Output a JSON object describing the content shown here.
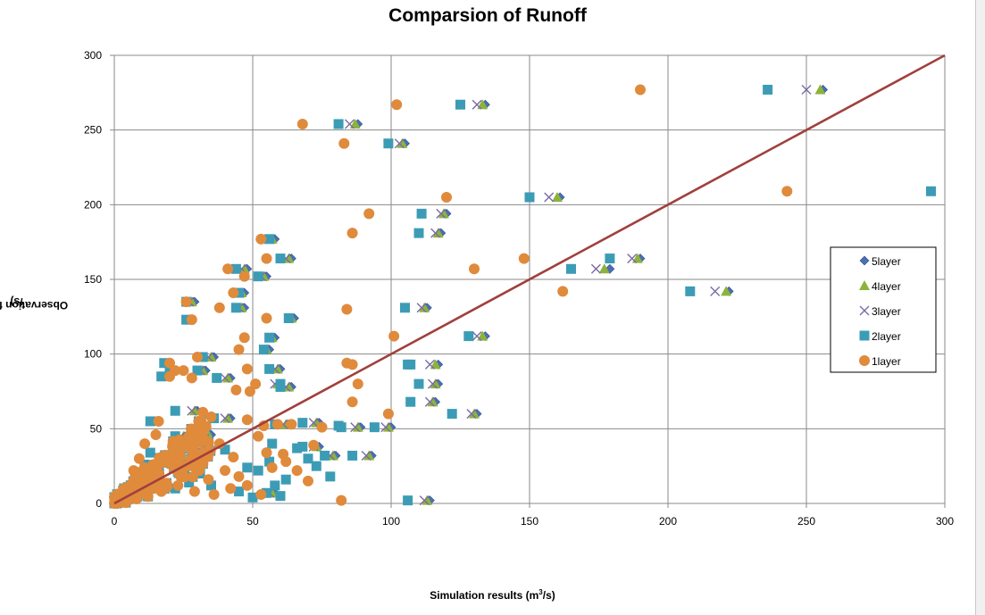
{
  "chart_data": {
    "type": "scatter",
    "title": "Comparsion of Runoff",
    "xlabel": "Simulation results (m",
    "xlabel_sup": "3",
    "xlabel_end": "/s)",
    "ylabel": "Observation flow (m",
    "ylabel_sup": "3",
    "ylabel_end": "/s)",
    "xlim": [
      0,
      300
    ],
    "ylim": [
      0,
      300
    ],
    "xticks": [
      0,
      50,
      100,
      150,
      200,
      250,
      300
    ],
    "yticks": [
      0,
      50,
      100,
      150,
      200,
      250,
      300
    ],
    "grid": true,
    "legend_position": "right",
    "reference_line": {
      "x": [
        0,
        300
      ],
      "y": [
        0,
        300
      ],
      "color": "#a0403d"
    },
    "series": [
      {
        "name": "5layer",
        "marker": "diamond",
        "color": "#4a6fb5",
        "points": [
          [
            256,
            277
          ],
          [
            134,
            267
          ],
          [
            88,
            254
          ],
          [
            105,
            241
          ],
          [
            161,
            205
          ],
          [
            120,
            194
          ],
          [
            118,
            181
          ],
          [
            64,
            164
          ],
          [
            190,
            164
          ],
          [
            58,
            177
          ],
          [
            55,
            152
          ],
          [
            48,
            157
          ],
          [
            29,
            135
          ],
          [
            28,
            123
          ],
          [
            47,
            141
          ],
          [
            47,
            131
          ],
          [
            65,
            124
          ],
          [
            58,
            111
          ],
          [
            134,
            112
          ],
          [
            113,
            131
          ],
          [
            222,
            142
          ],
          [
            179,
            157
          ],
          [
            36,
            98
          ],
          [
            56,
            103
          ],
          [
            33,
            89
          ],
          [
            117,
            93
          ],
          [
            117,
            80
          ],
          [
            60,
            90
          ],
          [
            60,
            80
          ],
          [
            64,
            78
          ],
          [
            42,
            84
          ],
          [
            116,
            68
          ],
          [
            131,
            60
          ],
          [
            100,
            51
          ],
          [
            89,
            51
          ],
          [
            74,
            54
          ],
          [
            63,
            53
          ],
          [
            74,
            38
          ],
          [
            80,
            32
          ],
          [
            93,
            32
          ],
          [
            114,
            2
          ],
          [
            58,
            7
          ],
          [
            30,
            62
          ],
          [
            42,
            57
          ],
          [
            20,
            94
          ],
          [
            22,
            89
          ],
          [
            20,
            85
          ],
          [
            35,
            46
          ],
          [
            16,
            55
          ],
          [
            26,
            45
          ]
        ]
      },
      {
        "name": "4layer",
        "marker": "triangle",
        "color": "#8db33a",
        "points": [
          [
            255,
            277
          ],
          [
            133,
            267
          ],
          [
            87,
            254
          ],
          [
            104,
            241
          ],
          [
            160,
            205
          ],
          [
            119,
            194
          ],
          [
            117,
            181
          ],
          [
            63,
            164
          ],
          [
            189,
            164
          ],
          [
            57,
            177
          ],
          [
            54,
            152
          ],
          [
            47,
            157
          ],
          [
            28,
            135
          ],
          [
            27,
            123
          ],
          [
            46,
            141
          ],
          [
            46,
            131
          ],
          [
            64,
            124
          ],
          [
            57,
            111
          ],
          [
            133,
            112
          ],
          [
            112,
            131
          ],
          [
            221,
            142
          ],
          [
            177,
            157
          ],
          [
            35,
            98
          ],
          [
            55,
            103
          ],
          [
            32,
            89
          ],
          [
            116,
            93
          ],
          [
            116,
            80
          ],
          [
            59,
            90
          ],
          [
            59,
            80
          ],
          [
            63,
            78
          ],
          [
            41,
            84
          ],
          [
            115,
            68
          ],
          [
            130,
            60
          ],
          [
            99,
            51
          ],
          [
            88,
            51
          ],
          [
            73,
            54
          ],
          [
            62,
            53
          ],
          [
            73,
            38
          ],
          [
            79,
            32
          ],
          [
            92,
            32
          ],
          [
            113,
            2
          ],
          [
            57,
            7
          ],
          [
            29,
            62
          ],
          [
            41,
            57
          ],
          [
            19,
            94
          ],
          [
            21,
            89
          ],
          [
            19,
            85
          ],
          [
            34,
            46
          ],
          [
            15,
            55
          ],
          [
            25,
            45
          ]
        ]
      },
      {
        "name": "3layer",
        "marker": "cross",
        "color": "#7b6aa6",
        "points": [
          [
            250,
            277
          ],
          [
            131,
            267
          ],
          [
            85,
            254
          ],
          [
            103,
            241
          ],
          [
            157,
            205
          ],
          [
            118,
            194
          ],
          [
            116,
            181
          ],
          [
            62,
            164
          ],
          [
            187,
            164
          ],
          [
            56,
            177
          ],
          [
            53,
            152
          ],
          [
            46,
            157
          ],
          [
            27,
            135
          ],
          [
            26,
            123
          ],
          [
            45,
            141
          ],
          [
            45,
            131
          ],
          [
            63,
            124
          ],
          [
            56,
            111
          ],
          [
            131,
            112
          ],
          [
            111,
            131
          ],
          [
            217,
            142
          ],
          [
            174,
            157
          ],
          [
            34,
            98
          ],
          [
            54,
            103
          ],
          [
            31,
            89
          ],
          [
            114,
            93
          ],
          [
            115,
            80
          ],
          [
            58,
            90
          ],
          [
            58,
            80
          ],
          [
            62,
            78
          ],
          [
            40,
            84
          ],
          [
            114,
            68
          ],
          [
            129,
            60
          ],
          [
            98,
            51
          ],
          [
            87,
            51
          ],
          [
            72,
            54
          ],
          [
            61,
            53
          ],
          [
            72,
            38
          ],
          [
            78,
            32
          ],
          [
            91,
            32
          ],
          [
            112,
            2
          ],
          [
            56,
            7
          ],
          [
            28,
            62
          ],
          [
            40,
            57
          ],
          [
            18,
            94
          ],
          [
            20,
            89
          ],
          [
            18,
            85
          ],
          [
            33,
            46
          ],
          [
            14,
            55
          ],
          [
            24,
            45
          ]
        ]
      },
      {
        "name": "2layer",
        "marker": "square",
        "color": "#3c9cb5",
        "points": [
          [
            236,
            277
          ],
          [
            125,
            267
          ],
          [
            81,
            254
          ],
          [
            99,
            241
          ],
          [
            150,
            205
          ],
          [
            111,
            194
          ],
          [
            110,
            181
          ],
          [
            60,
            164
          ],
          [
            179,
            164
          ],
          [
            56,
            177
          ],
          [
            52,
            152
          ],
          [
            44,
            157
          ],
          [
            26,
            135
          ],
          [
            26,
            123
          ],
          [
            45,
            141
          ],
          [
            44,
            131
          ],
          [
            63,
            124
          ],
          [
            56,
            111
          ],
          [
            128,
            112
          ],
          [
            105,
            131
          ],
          [
            208,
            142
          ],
          [
            165,
            157
          ],
          [
            32,
            98
          ],
          [
            54,
            103
          ],
          [
            30,
            89
          ],
          [
            106,
            93
          ],
          [
            110,
            80
          ],
          [
            56,
            90
          ],
          [
            60,
            80
          ],
          [
            60,
            78
          ],
          [
            37,
            84
          ],
          [
            107,
            68
          ],
          [
            122,
            60
          ],
          [
            94,
            51
          ],
          [
            82,
            51
          ],
          [
            68,
            54
          ],
          [
            58,
            53
          ],
          [
            68,
            38
          ],
          [
            76,
            32
          ],
          [
            86,
            32
          ],
          [
            106,
            2
          ],
          [
            55,
            7
          ],
          [
            22,
            62
          ],
          [
            36,
            57
          ],
          [
            18,
            94
          ],
          [
            20,
            89
          ],
          [
            17,
            85
          ],
          [
            30,
            46
          ],
          [
            13,
            55
          ],
          [
            22,
            45
          ],
          [
            295,
            209
          ],
          [
            107,
            93
          ],
          [
            81,
            52
          ],
          [
            66,
            37
          ],
          [
            57,
            40
          ],
          [
            56,
            28
          ],
          [
            52,
            22
          ],
          [
            58,
            12
          ],
          [
            62,
            16
          ],
          [
            48,
            24
          ],
          [
            40,
            36
          ],
          [
            31,
            20
          ],
          [
            24,
            30
          ],
          [
            15,
            18
          ],
          [
            9,
            12
          ],
          [
            6,
            8
          ],
          [
            4,
            5
          ],
          [
            2,
            2
          ],
          [
            11,
            26
          ],
          [
            18,
            31
          ],
          [
            13,
            34
          ],
          [
            27,
            14
          ],
          [
            22,
            10
          ],
          [
            35,
            12
          ],
          [
            45,
            8
          ],
          [
            50,
            4
          ],
          [
            60,
            5
          ],
          [
            70,
            30
          ],
          [
            73,
            25
          ],
          [
            78,
            18
          ]
        ]
      },
      {
        "name": "1layer",
        "marker": "circle",
        "color": "#e08a3c",
        "points": [
          [
            190,
            277
          ],
          [
            102,
            267
          ],
          [
            68,
            254
          ],
          [
            83,
            241
          ],
          [
            120,
            205
          ],
          [
            92,
            194
          ],
          [
            86,
            181
          ],
          [
            55,
            164
          ],
          [
            148,
            164
          ],
          [
            53,
            177
          ],
          [
            47,
            152
          ],
          [
            41,
            157
          ],
          [
            26,
            135
          ],
          [
            28,
            123
          ],
          [
            43,
            141
          ],
          [
            38,
            131
          ],
          [
            55,
            124
          ],
          [
            47,
            111
          ],
          [
            101,
            112
          ],
          [
            84,
            130
          ],
          [
            162,
            142
          ],
          [
            130,
            157
          ],
          [
            30,
            98
          ],
          [
            45,
            103
          ],
          [
            25,
            89
          ],
          [
            84,
            94
          ],
          [
            88,
            80
          ],
          [
            48,
            90
          ],
          [
            51,
            80
          ],
          [
            49,
            75
          ],
          [
            28,
            84
          ],
          [
            86,
            68
          ],
          [
            99,
            60
          ],
          [
            75,
            51
          ],
          [
            59,
            53
          ],
          [
            64,
            53
          ],
          [
            54,
            52
          ],
          [
            72,
            39
          ],
          [
            61,
            33
          ],
          [
            43,
            31
          ],
          [
            82,
            2
          ],
          [
            243,
            209
          ],
          [
            86,
            93
          ],
          [
            32,
            61
          ],
          [
            35,
            58
          ],
          [
            20,
            94
          ],
          [
            22,
            89
          ],
          [
            20,
            85
          ],
          [
            29,
            46
          ],
          [
            16,
            55
          ],
          [
            27,
            45
          ],
          [
            44,
            76
          ],
          [
            48,
            56
          ],
          [
            52,
            45
          ],
          [
            38,
            40
          ],
          [
            30,
            26
          ],
          [
            40,
            22
          ],
          [
            34,
            16
          ],
          [
            23,
            12
          ],
          [
            17,
            8
          ],
          [
            12,
            5
          ],
          [
            8,
            3
          ],
          [
            5,
            2
          ],
          [
            3,
            1
          ],
          [
            10,
            20
          ],
          [
            14,
            26
          ],
          [
            19,
            31
          ],
          [
            21,
            38
          ],
          [
            26,
            42
          ],
          [
            15,
            46
          ],
          [
            11,
            40
          ],
          [
            9,
            30
          ],
          [
            7,
            22
          ],
          [
            24,
            18
          ],
          [
            29,
            8
          ],
          [
            36,
            6
          ],
          [
            42,
            10
          ],
          [
            45,
            18
          ],
          [
            55,
            34
          ],
          [
            57,
            24
          ],
          [
            62,
            28
          ],
          [
            66,
            22
          ],
          [
            70,
            15
          ],
          [
            48,
            12
          ],
          [
            53,
            6
          ]
        ]
      }
    ]
  }
}
